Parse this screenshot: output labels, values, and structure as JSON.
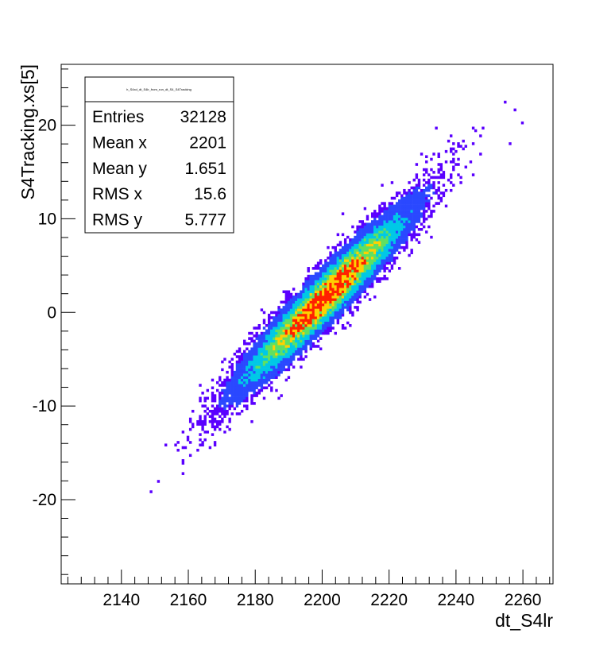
{
  "chart_data": {
    "type": "heatmap",
    "title": "",
    "xlabel": "dt_S4lr",
    "ylabel": "S4Tracking.xs[5]",
    "xlim": [
      2122,
      2269
    ],
    "ylim": [
      -29,
      26.5
    ],
    "x_ticks": [
      2140,
      2160,
      2180,
      2200,
      2220,
      2240,
      2260
    ],
    "y_ticks": [
      -20,
      -10,
      0,
      10,
      20
    ],
    "grid": false,
    "legend": "top-left",
    "colors": {
      "low": "#5a00ff",
      "mid_low": "#2a48ff",
      "mid": "#00c8e6",
      "mid_high": "#60e060",
      "high": "#ffd000",
      "peak": "#ff2000"
    },
    "distribution": {
      "x_mean": 2201,
      "y_mean": 1.651,
      "x_rms": 15.6,
      "y_rms": 5.777,
      "correlation": 0.95
    },
    "stats_box": {
      "title": "h_S4xd_dt_S4lr_from_run_dt_S4_S4Tracking",
      "rows": [
        {
          "label": "Entries",
          "value": "32128"
        },
        {
          "label": "Mean x",
          "value": "2201"
        },
        {
          "label": "Mean y",
          "value": "1.651"
        },
        {
          "label": "RMS x",
          "value": "15.6"
        },
        {
          "label": "RMS y",
          "value": "5.777"
        }
      ]
    }
  }
}
